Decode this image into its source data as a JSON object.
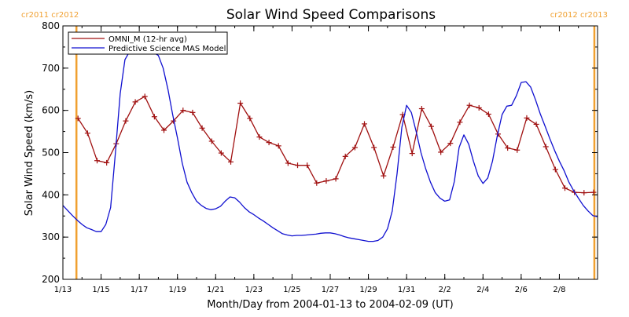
{
  "chart_data": {
    "type": "line",
    "title": "Solar Wind Speed Comparisons",
    "xlabel": "Month/Day from 2004-01-13 to 2004-02-09 (UT)",
    "ylabel": "Solar Wind Speed (km/s)",
    "xlim": [
      "2004-01-13",
      "2004-02-10"
    ],
    "ylim": [
      200,
      800
    ],
    "x_ticks": [
      {
        "date": "2004-01-13",
        "label": "1/13"
      },
      {
        "date": "2004-01-15",
        "label": "1/15"
      },
      {
        "date": "2004-01-17",
        "label": "1/17"
      },
      {
        "date": "2004-01-19",
        "label": "1/19"
      },
      {
        "date": "2004-01-21",
        "label": "1/21"
      },
      {
        "date": "2004-01-23",
        "label": "1/23"
      },
      {
        "date": "2004-01-25",
        "label": "1/25"
      },
      {
        "date": "2004-01-27",
        "label": "1/27"
      },
      {
        "date": "2004-01-29",
        "label": "1/29"
      },
      {
        "date": "2004-01-31",
        "label": "1/31"
      },
      {
        "date": "2004-02-02",
        "label": "2/2"
      },
      {
        "date": "2004-02-04",
        "label": "2/4"
      },
      {
        "date": "2004-02-06",
        "label": "2/6"
      },
      {
        "date": "2004-02-08",
        "label": "2/8"
      }
    ],
    "y_ticks": [
      200,
      300,
      400,
      500,
      600,
      700,
      800
    ],
    "legend_position": "top-left",
    "grid": false,
    "rotation_markers": [
      {
        "x": "2004-01-13 17:00",
        "color": "#f0a030",
        "labels": [
          "cr2011",
          "cr2012"
        ]
      },
      {
        "x": "2004-02-09 20:00",
        "color": "#f0a030",
        "labels": [
          "cr2012",
          "cr2013"
        ]
      }
    ],
    "series": [
      {
        "name": "OMNI_M (12-hr avg)",
        "color": "#a01010",
        "marker": "plus",
        "x": [
          "2004-01-13 19:00",
          "2004-01-14 07:00",
          "2004-01-14 19:00",
          "2004-01-15 07:00",
          "2004-01-15 19:00",
          "2004-01-16 07:00",
          "2004-01-16 19:00",
          "2004-01-17 07:00",
          "2004-01-17 19:00",
          "2004-01-18 07:00",
          "2004-01-18 19:00",
          "2004-01-19 07:00",
          "2004-01-19 19:00",
          "2004-01-20 07:00",
          "2004-01-20 19:00",
          "2004-01-21 07:00",
          "2004-01-21 19:00",
          "2004-01-22 07:00",
          "2004-01-22 19:00",
          "2004-01-23 07:00",
          "2004-01-23 19:00",
          "2004-01-24 07:00",
          "2004-01-24 19:00",
          "2004-01-25 07:00",
          "2004-01-25 19:00",
          "2004-01-26 07:00",
          "2004-01-26 19:00",
          "2004-01-27 07:00",
          "2004-01-27 19:00",
          "2004-01-28 07:00",
          "2004-01-28 19:00",
          "2004-01-29 07:00",
          "2004-01-29 19:00",
          "2004-01-30 07:00",
          "2004-01-30 19:00",
          "2004-01-31 07:00",
          "2004-01-31 19:00",
          "2004-02-01 07:00",
          "2004-02-01 19:00",
          "2004-02-02 07:00",
          "2004-02-02 19:00",
          "2004-02-03 07:00",
          "2004-02-03 19:00",
          "2004-02-04 07:00",
          "2004-02-04 19:00",
          "2004-02-05 07:00",
          "2004-02-05 19:00",
          "2004-02-06 07:00",
          "2004-02-06 19:00",
          "2004-02-07 07:00",
          "2004-02-07 19:00",
          "2004-02-08 07:00",
          "2004-02-08 19:00",
          "2004-02-09 07:00",
          "2004-02-09 19:00"
        ],
        "values": [
          581,
          546,
          481,
          476,
          521,
          575,
          620,
          633,
          585,
          553,
          575,
          600,
          595,
          558,
          527,
          499,
          478,
          617,
          581,
          537,
          524,
          516,
          475,
          470,
          470,
          428,
          433,
          438,
          491,
          512,
          568,
          512,
          445,
          513,
          590,
          498,
          604,
          562,
          501,
          522,
          572,
          612,
          606,
          591,
          544,
          511,
          506,
          582,
          567,
          514,
          460,
          416,
          406,
          405,
          406
        ]
      },
      {
        "name": "Predictive Science MAS Model",
        "color": "#1010d0",
        "marker": "none",
        "x": [
          "2004-01-13 00:00",
          "2004-01-13 06:00",
          "2004-01-13 12:00",
          "2004-01-13 18:00",
          "2004-01-14 00:00",
          "2004-01-14 06:00",
          "2004-01-14 12:00",
          "2004-01-14 18:00",
          "2004-01-15 00:00",
          "2004-01-15 06:00",
          "2004-01-15 12:00",
          "2004-01-15 18:00",
          "2004-01-16 00:00",
          "2004-01-16 06:00",
          "2004-01-16 12:00",
          "2004-01-16 18:00",
          "2004-01-17 00:00",
          "2004-01-17 06:00",
          "2004-01-17 12:00",
          "2004-01-17 18:00",
          "2004-01-18 00:00",
          "2004-01-18 06:00",
          "2004-01-18 12:00",
          "2004-01-18 18:00",
          "2004-01-19 00:00",
          "2004-01-19 06:00",
          "2004-01-19 12:00",
          "2004-01-19 18:00",
          "2004-01-20 00:00",
          "2004-01-20 06:00",
          "2004-01-20 12:00",
          "2004-01-20 18:00",
          "2004-01-21 00:00",
          "2004-01-21 06:00",
          "2004-01-21 12:00",
          "2004-01-21 18:00",
          "2004-01-22 00:00",
          "2004-01-22 06:00",
          "2004-01-22 12:00",
          "2004-01-22 18:00",
          "2004-01-23 00:00",
          "2004-01-23 06:00",
          "2004-01-23 12:00",
          "2004-01-23 18:00",
          "2004-01-24 00:00",
          "2004-01-24 06:00",
          "2004-01-24 12:00",
          "2004-01-24 18:00",
          "2004-01-25 00:00",
          "2004-01-25 06:00",
          "2004-01-25 12:00",
          "2004-01-25 18:00",
          "2004-01-26 00:00",
          "2004-01-26 06:00",
          "2004-01-26 12:00",
          "2004-01-26 18:00",
          "2004-01-27 00:00",
          "2004-01-27 06:00",
          "2004-01-27 12:00",
          "2004-01-27 18:00",
          "2004-01-28 00:00",
          "2004-01-28 06:00",
          "2004-01-28 12:00",
          "2004-01-28 18:00",
          "2004-01-29 00:00",
          "2004-01-29 06:00",
          "2004-01-29 12:00",
          "2004-01-29 18:00",
          "2004-01-30 00:00",
          "2004-01-30 06:00",
          "2004-01-30 12:00",
          "2004-01-30 18:00",
          "2004-01-31 00:00",
          "2004-01-31 06:00",
          "2004-01-31 12:00",
          "2004-01-31 18:00",
          "2004-02-01 00:00",
          "2004-02-01 06:00",
          "2004-02-01 12:00",
          "2004-02-01 18:00",
          "2004-02-02 00:00",
          "2004-02-02 06:00",
          "2004-02-02 12:00",
          "2004-02-02 18:00",
          "2004-02-03 00:00",
          "2004-02-03 06:00",
          "2004-02-03 12:00",
          "2004-02-03 18:00",
          "2004-02-04 00:00",
          "2004-02-04 06:00",
          "2004-02-04 12:00",
          "2004-02-04 18:00",
          "2004-02-05 00:00",
          "2004-02-05 06:00",
          "2004-02-05 12:00",
          "2004-02-05 18:00",
          "2004-02-06 00:00",
          "2004-02-06 06:00",
          "2004-02-06 12:00",
          "2004-02-06 18:00",
          "2004-02-07 00:00",
          "2004-02-07 06:00",
          "2004-02-07 12:00",
          "2004-02-07 18:00",
          "2004-02-08 00:00",
          "2004-02-08 06:00",
          "2004-02-08 12:00",
          "2004-02-08 18:00",
          "2004-02-09 00:00",
          "2004-02-09 06:00",
          "2004-02-09 12:00",
          "2004-02-09 18:00",
          "2004-02-10 00:00"
        ],
        "values": [
          375,
          363,
          351,
          340,
          330,
          322,
          318,
          313,
          313,
          330,
          370,
          500,
          640,
          720,
          740,
          743,
          742,
          741,
          740,
          737,
          730,
          700,
          650,
          590,
          535,
          475,
          430,
          405,
          385,
          375,
          368,
          365,
          367,
          373,
          385,
          395,
          393,
          383,
          370,
          360,
          353,
          345,
          338,
          330,
          322,
          315,
          308,
          305,
          303,
          304,
          304,
          305,
          306,
          307,
          309,
          310,
          310,
          308,
          305,
          301,
          298,
          296,
          294,
          292,
          290,
          290,
          292,
          300,
          320,
          362,
          450,
          560,
          612,
          595,
          550,
          500,
          462,
          430,
          405,
          392,
          385,
          388,
          432,
          512,
          542,
          520,
          480,
          445,
          427,
          440,
          480,
          540,
          590,
          610,
          612,
          635,
          666,
          668,
          655,
          625,
          592,
          563,
          533,
          505,
          480,
          457,
          430,
          410,
          392,
          375,
          362,
          351,
          348
        ]
      }
    ]
  }
}
